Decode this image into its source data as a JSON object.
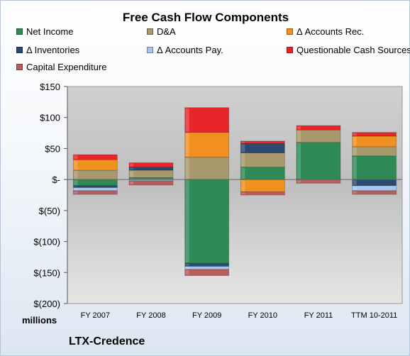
{
  "chart_data": {
    "type": "bar",
    "stacked": true,
    "title": "Free Cash Flow Components",
    "company": "LTX-Credence",
    "units_label": "millions",
    "categories": [
      "FY 2007",
      "FY 2008",
      "FY 2009",
      "FY 2010",
      "FY 2011",
      "TTM 10-2011"
    ],
    "ylim": [
      -200,
      150
    ],
    "yticks": [
      150,
      100,
      50,
      0,
      -50,
      -100,
      -150,
      -200
    ],
    "ytick_labels": [
      "$150",
      "$100",
      "$50",
      "$-",
      "$(50)",
      "$(100)",
      "$(150)",
      "$(200)"
    ],
    "grid": false,
    "legend_position": "top",
    "series": [
      {
        "name": "Net Income",
        "color": "#2e8b57",
        "values": [
          -10,
          3,
          -135,
          20,
          60,
          38
        ]
      },
      {
        "name": "D&A",
        "color": "#a8996c",
        "values": [
          15,
          12,
          36,
          23,
          20,
          15
        ]
      },
      {
        "name": "Δ Accounts Rec.",
        "color": "#f0901e",
        "values": [
          17,
          0,
          40,
          -20,
          0,
          17
        ]
      },
      {
        "name": "Δ Inventories",
        "color": "#2c4a70",
        "values": [
          -3,
          5,
          -5,
          15,
          0,
          -10
        ]
      },
      {
        "name": "Δ Accounts Pay.",
        "color": "#a9c6ea",
        "values": [
          -5,
          -2,
          -5,
          0,
          0,
          -8
        ]
      },
      {
        "name": "Questionable Cash Sources",
        "color": "#e8262a",
        "values": [
          8,
          7,
          40,
          4,
          7,
          6
        ]
      },
      {
        "name": "Capital Expenditure",
        "color": "#b85c5c",
        "values": [
          -6,
          -7,
          -10,
          -5,
          -6,
          -6
        ]
      }
    ]
  }
}
